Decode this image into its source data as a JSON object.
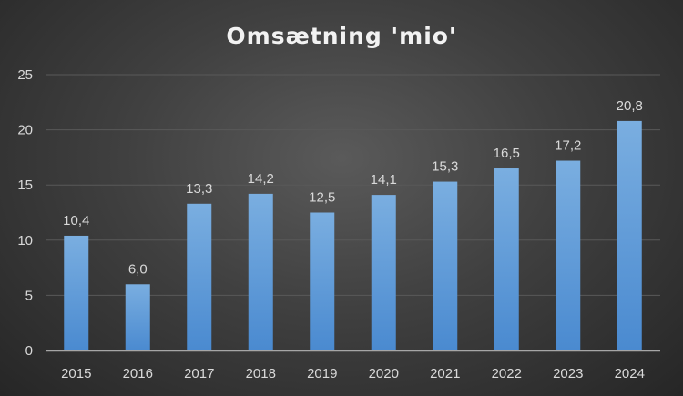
{
  "chart_data": {
    "type": "bar",
    "title": "Omsætning 'mio'",
    "xlabel": "",
    "ylabel": "",
    "categories": [
      "2015",
      "2016",
      "2017",
      "2018",
      "2019",
      "2020",
      "2021",
      "2022",
      "2023",
      "2024"
    ],
    "values": [
      10.4,
      6.0,
      13.3,
      14.2,
      12.5,
      14.1,
      15.3,
      16.5,
      17.2,
      20.8
    ],
    "data_labels": [
      "10,4",
      "6,0",
      "13,3",
      "14,2",
      "12,5",
      "14,1",
      "15,3",
      "16,5",
      "17,2",
      "20,8"
    ],
    "ylim": [
      0,
      25
    ],
    "yticks": [
      "0",
      "5",
      "10",
      "15",
      "20",
      "25"
    ],
    "grid": true,
    "legend": "none",
    "colors": {
      "bar_top": "#7aaee0",
      "bar_bottom": "#4a8ad0",
      "grid": "#595959",
      "axis": "#a6a6a6"
    }
  }
}
